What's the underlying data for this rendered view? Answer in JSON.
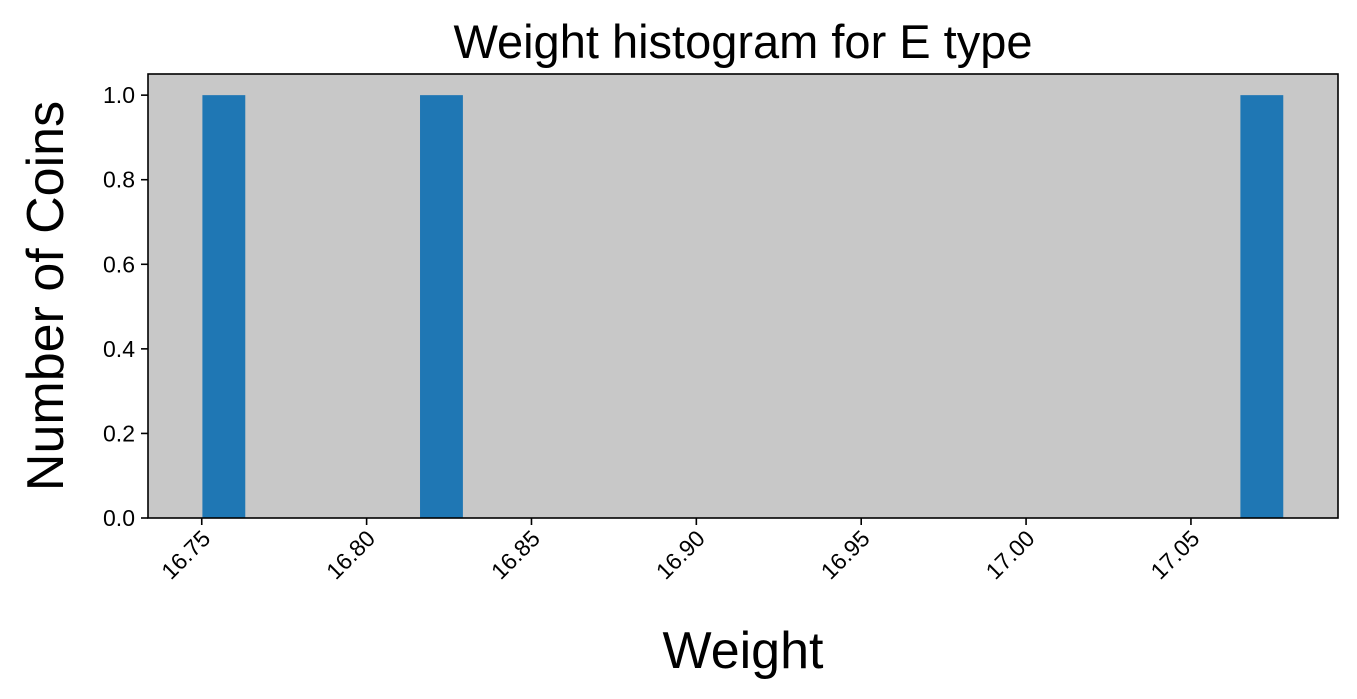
{
  "chart_data": {
    "type": "bar",
    "title": "Weight histogram for E type",
    "xlabel": "Weight",
    "ylabel": "Number of Coins",
    "xlim": [
      16.7337,
      17.0946
    ],
    "ylim": [
      0.0,
      1.05
    ],
    "x_ticks": [
      "16.75",
      "16.80",
      "16.85",
      "16.90",
      "16.95",
      "17.00",
      "17.05"
    ],
    "y_ticks": [
      "0.0",
      "0.2",
      "0.4",
      "0.6",
      "0.8",
      "1.0"
    ],
    "x_tick_rotation": 45,
    "grid": false,
    "legend": false,
    "bins": [
      {
        "start": 16.7502,
        "end": 16.7632,
        "count": 1
      },
      {
        "start": 16.8162,
        "end": 16.8292,
        "count": 1
      },
      {
        "start": 17.065,
        "end": 17.078,
        "count": 1
      }
    ],
    "colors": {
      "bar": "#1f77b4",
      "plot_background": "#c8c8c8",
      "axes": "#000000"
    }
  }
}
